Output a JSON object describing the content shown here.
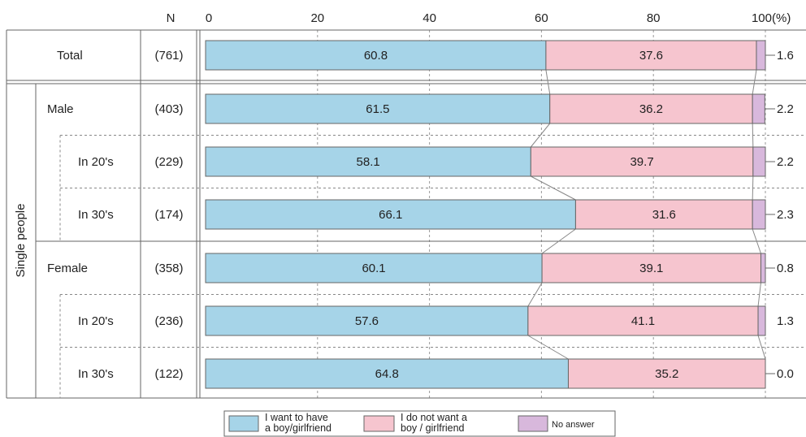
{
  "chart_data": {
    "type": "bar",
    "stacked": true,
    "orientation": "horizontal",
    "xlim": [
      0,
      100
    ],
    "x_ticks": [
      0,
      20,
      40,
      60,
      80,
      100
    ],
    "x_tick_labels": [
      "0",
      "20",
      "40",
      "60",
      "80",
      "100"
    ],
    "unit_label": "(%)",
    "n_header": "N",
    "group_label": "Single people",
    "categories": [
      "Total",
      "Male",
      "In 20's",
      "In 30's",
      "Female",
      "In 20's",
      "In 30's"
    ],
    "n_values": [
      "(761)",
      "(403)",
      "(229)",
      "(174)",
      "(358)",
      "(236)",
      "(122)"
    ],
    "series": [
      {
        "name": "I want to have a boy/girlfriend",
        "legend_lines": [
          "I want to have",
          "a boy/girlfriend"
        ],
        "color": "#a6d4e8",
        "values": [
          60.8,
          61.5,
          58.1,
          66.1,
          60.1,
          57.6,
          64.8
        ]
      },
      {
        "name": "I do not want a boy / girlfriend",
        "legend_lines": [
          "I do not want a",
          "boy / girlfriend"
        ],
        "color": "#f6c5cf",
        "values": [
          37.6,
          36.2,
          39.7,
          31.6,
          39.1,
          41.1,
          35.2
        ]
      },
      {
        "name": "No answer",
        "legend_lines": [
          "No answer"
        ],
        "color": "#d8b8dc",
        "values": [
          1.6,
          2.2,
          2.2,
          2.3,
          0.8,
          1.3,
          0.0
        ]
      }
    ],
    "value_labels": {
      "want": [
        "60.8",
        "61.5",
        "58.1",
        "66.1",
        "60.1",
        "57.6",
        "64.8"
      ],
      "not_want": [
        "37.6",
        "36.2",
        "39.7",
        "31.6",
        "39.1",
        "41.1",
        "35.2"
      ],
      "no_answer": [
        "1.6",
        "2.2",
        "2.2",
        "2.3",
        "0.8",
        "1.3",
        "0.0"
      ]
    },
    "no_answer_label_style": [
      "leader",
      "leader",
      "leader",
      "leader",
      "leader",
      "plain",
      "leader"
    ]
  }
}
